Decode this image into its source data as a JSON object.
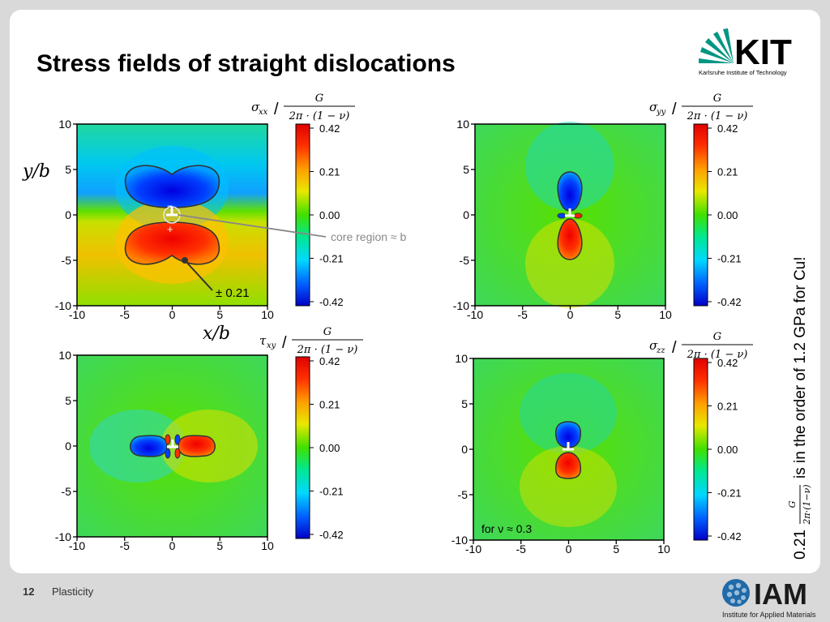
{
  "slide": {
    "title": "Stress fields of straight dislocations",
    "page_number": "12",
    "section": "Plasticity",
    "logo_top": {
      "name": "KIT",
      "subtitle": "Karlsruhe Institute of Technology"
    },
    "logo_bottom": {
      "name": "IAM",
      "subtitle": "Institute for Applied Materials"
    }
  },
  "axes": {
    "ticks": [
      "-10",
      "-5",
      "0",
      "5",
      "10"
    ],
    "x_label": "x/b",
    "y_label": "y/b"
  },
  "colorbar": {
    "ticks": [
      "0.42",
      "0.21",
      "0.00",
      "-0.21",
      "-0.42"
    ],
    "colors": [
      "#0000d0",
      "#0060ff",
      "#00e0ff",
      "#00e060",
      "#40e000",
      "#e0e000",
      "#ff9000",
      "#ff1000",
      "#d00000"
    ]
  },
  "panels": [
    {
      "id": "sxx",
      "label_sym": "σ",
      "label_sub": "xx",
      "fraction_num": "G",
      "fraction_den": "2π · (1 − ν)"
    },
    {
      "id": "syy",
      "label_sym": "σ",
      "label_sub": "yy",
      "fraction_num": "G",
      "fraction_den": "2π · (1 − ν)"
    },
    {
      "id": "txy",
      "label_sym": "τ",
      "label_sub": "xy",
      "fraction_num": "G",
      "fraction_den": "2π · (1 − ν)"
    },
    {
      "id": "szz",
      "label_sym": "σ",
      "label_sub": "zz",
      "fraction_num": "G",
      "fraction_den": "2π · (1 − ν)"
    }
  ],
  "annotations": {
    "core_region": "core region ≈ b",
    "contour_label": "± 0.21",
    "nu_note": "for ν ≈ 0.3",
    "minus_sign": "−",
    "plus_sign": "+"
  },
  "side_note": {
    "value": "0.21",
    "fraction_num": "G",
    "fraction_den": "2π·(1−ν)",
    "text": "is in the order of 1.2 GPa for Cu!"
  }
}
